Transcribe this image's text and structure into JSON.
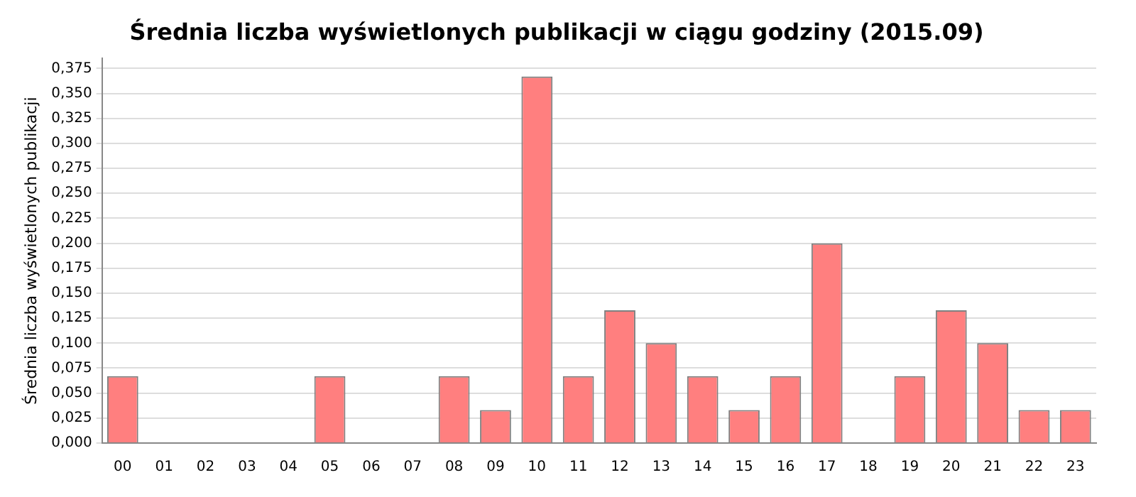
{
  "chart_data": {
    "type": "bar",
    "title": "Średnia liczba wyświetlonych publikacji w ciągu godziny (2015.09)",
    "ylabel": "Średnia liczba wyświetlonych publikacji",
    "categories": [
      "00",
      "01",
      "02",
      "03",
      "04",
      "05",
      "06",
      "07",
      "08",
      "09",
      "10",
      "11",
      "12",
      "13",
      "14",
      "15",
      "16",
      "17",
      "18",
      "19",
      "20",
      "21",
      "22",
      "23"
    ],
    "values": [
      0.067,
      0,
      0,
      0,
      0,
      0.067,
      0,
      0,
      0.067,
      0.033,
      0.367,
      0.067,
      0.133,
      0.1,
      0.067,
      0.033,
      0.067,
      0.2,
      0,
      0.067,
      0.133,
      0.1,
      0.033,
      0.033
    ],
    "color": "#ff7f7f",
    "ylim": [
      0,
      0.385
    ],
    "yticks": [
      {
        "value": 0,
        "label": "0,000"
      },
      {
        "value": 0.025,
        "label": "0,025"
      },
      {
        "value": 0.05,
        "label": "0,050"
      },
      {
        "value": 0.075,
        "label": "0,075"
      },
      {
        "value": 0.1,
        "label": "0,100"
      },
      {
        "value": 0.125,
        "label": "0,125"
      },
      {
        "value": 0.15,
        "label": "0,150"
      },
      {
        "value": 0.175,
        "label": "0,175"
      },
      {
        "value": 0.2,
        "label": "0,200"
      },
      {
        "value": 0.225,
        "label": "0,225"
      },
      {
        "value": 0.25,
        "label": "0,250"
      },
      {
        "value": 0.275,
        "label": "0,275"
      },
      {
        "value": 0.3,
        "label": "0,300"
      },
      {
        "value": 0.325,
        "label": "0,325"
      },
      {
        "value": 0.35,
        "label": "0,350"
      },
      {
        "value": 0.375,
        "label": "0,375"
      }
    ],
    "grid": "y"
  }
}
